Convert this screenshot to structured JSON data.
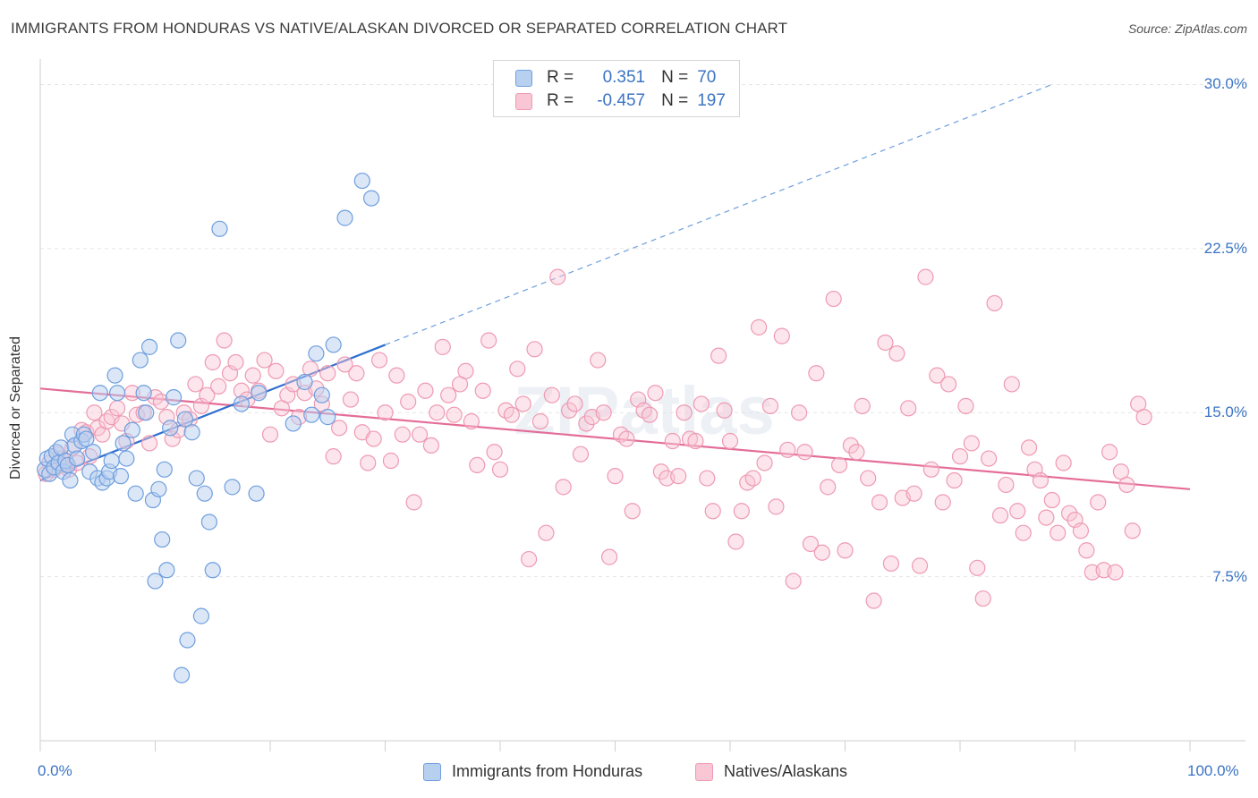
{
  "header": {
    "title": "IMMIGRANTS FROM HONDURAS VS NATIVE/ALASKAN DIVORCED OR SEPARATED CORRELATION CHART",
    "source": "Source: ZipAtlas.com"
  },
  "watermark": "ZIPatlas",
  "legend": {
    "rows": [
      {
        "r_label": "R =",
        "r_value": "0.351",
        "n_label": "N =",
        "n_value": "70"
      },
      {
        "r_label": "R =",
        "r_value": "-0.457",
        "n_label": "N =",
        "n_value": "197"
      }
    ]
  },
  "bottom_legend": [
    "Immigrants from Honduras",
    "Natives/Alaskans"
  ],
  "colors": {
    "blue_fill": "#b8d0f0",
    "blue_stroke": "#6f9fde",
    "blue_line": "#2f6fd0",
    "pink_fill": "#f8c6d4",
    "pink_stroke": "#ee9ab3",
    "pink_line": "#e46d98",
    "tick_text": "#3b74c4",
    "grid": "#e5e5e5"
  },
  "chart_data": {
    "type": "scatter",
    "title": "IMMIGRANTS FROM HONDURAS VS NATIVE/ALASKAN DIVORCED OR SEPARATED CORRELATION CHART",
    "xlabel": "",
    "ylabel": "Divorced or Separated",
    "x_tick_labels": [
      "0.0%",
      "100.0%"
    ],
    "y_tick_labels": [
      "7.5%",
      "15.0%",
      "22.5%",
      "30.0%"
    ],
    "y_ticks": [
      7.5,
      15.0,
      22.5,
      30.0
    ],
    "xlim": [
      0,
      100
    ],
    "ylim": [
      0,
      31
    ],
    "grid": true,
    "legend_position": "top-center",
    "series": [
      {
        "name": "Immigrants from Honduras",
        "color": "#6f9fde",
        "R": 0.351,
        "N": 70,
        "trend": {
          "x": [
            0,
            30
          ],
          "y": [
            11.9,
            18.1
          ],
          "dashed_extension_to": [
            88,
            30.0
          ]
        },
        "points": [
          [
            0.4,
            12.4
          ],
          [
            0.6,
            12.9
          ],
          [
            0.8,
            12.2
          ],
          [
            1.0,
            13.0
          ],
          [
            1.2,
            12.5
          ],
          [
            1.4,
            13.2
          ],
          [
            1.6,
            12.7
          ],
          [
            1.8,
            13.4
          ],
          [
            2.0,
            12.3
          ],
          [
            2.2,
            12.8
          ],
          [
            2.4,
            12.6
          ],
          [
            2.6,
            11.9
          ],
          [
            2.8,
            14.0
          ],
          [
            3.0,
            13.5
          ],
          [
            3.2,
            12.9
          ],
          [
            3.6,
            13.7
          ],
          [
            3.8,
            14.0
          ],
          [
            4.0,
            13.8
          ],
          [
            4.3,
            12.3
          ],
          [
            4.6,
            13.2
          ],
          [
            5.0,
            12.0
          ],
          [
            5.2,
            15.9
          ],
          [
            5.4,
            11.8
          ],
          [
            5.8,
            12.0
          ],
          [
            6.0,
            12.3
          ],
          [
            6.2,
            12.8
          ],
          [
            6.5,
            16.7
          ],
          [
            6.7,
            15.9
          ],
          [
            7.0,
            12.1
          ],
          [
            7.2,
            13.6
          ],
          [
            7.5,
            12.9
          ],
          [
            8.0,
            14.2
          ],
          [
            8.3,
            11.3
          ],
          [
            8.7,
            17.4
          ],
          [
            9.0,
            15.9
          ],
          [
            9.2,
            15.0
          ],
          [
            9.5,
            18.0
          ],
          [
            9.8,
            11.0
          ],
          [
            10.0,
            7.3
          ],
          [
            10.3,
            11.5
          ],
          [
            10.6,
            9.2
          ],
          [
            10.8,
            12.4
          ],
          [
            11.0,
            7.8
          ],
          [
            11.3,
            14.3
          ],
          [
            11.6,
            15.7
          ],
          [
            12.0,
            18.3
          ],
          [
            12.3,
            3.0
          ],
          [
            12.6,
            14.7
          ],
          [
            12.8,
            4.6
          ],
          [
            13.2,
            14.1
          ],
          [
            13.6,
            12.0
          ],
          [
            14.0,
            5.7
          ],
          [
            14.3,
            11.3
          ],
          [
            14.7,
            10.0
          ],
          [
            15.0,
            7.8
          ],
          [
            15.6,
            23.4
          ],
          [
            16.7,
            11.6
          ],
          [
            17.5,
            15.4
          ],
          [
            18.8,
            11.3
          ],
          [
            19.0,
            15.9
          ],
          [
            22.0,
            14.5
          ],
          [
            23.0,
            16.4
          ],
          [
            23.6,
            14.9
          ],
          [
            24.0,
            17.7
          ],
          [
            24.5,
            15.8
          ],
          [
            25.0,
            14.8
          ],
          [
            25.5,
            18.1
          ],
          [
            28.0,
            25.6
          ],
          [
            28.8,
            24.8
          ],
          [
            26.5,
            23.9
          ]
        ]
      },
      {
        "name": "Natives/Alaskans",
        "color": "#ee9ab3",
        "R": -0.457,
        "N": 197,
        "trend": {
          "x": [
            0,
            100
          ],
          "y": [
            16.1,
            11.5
          ]
        },
        "points": [
          [
            0.5,
            12.2
          ],
          [
            0.8,
            12.7
          ],
          [
            1.2,
            12.4
          ],
          [
            1.5,
            13.1
          ],
          [
            1.8,
            12.9
          ],
          [
            2.1,
            12.6
          ],
          [
            2.5,
            12.4
          ],
          [
            2.8,
            13.4
          ],
          [
            3.2,
            12.7
          ],
          [
            3.6,
            14.2
          ],
          [
            4.0,
            14.1
          ],
          [
            4.3,
            13.0
          ],
          [
            4.7,
            15.0
          ],
          [
            5.0,
            14.3
          ],
          [
            5.4,
            14.0
          ],
          [
            5.8,
            14.6
          ],
          [
            6.2,
            14.8
          ],
          [
            6.7,
            15.2
          ],
          [
            7.1,
            14.5
          ],
          [
            7.5,
            13.7
          ],
          [
            8.0,
            15.9
          ],
          [
            8.4,
            14.9
          ],
          [
            9.0,
            15.0
          ],
          [
            9.5,
            13.6
          ],
          [
            10.0,
            15.7
          ],
          [
            10.5,
            15.5
          ],
          [
            11.0,
            14.8
          ],
          [
            11.5,
            13.8
          ],
          [
            12.0,
            14.2
          ],
          [
            12.5,
            15.0
          ],
          [
            13.0,
            14.7
          ],
          [
            13.5,
            16.3
          ],
          [
            14.0,
            15.3
          ],
          [
            14.5,
            15.8
          ],
          [
            15.0,
            17.3
          ],
          [
            15.5,
            16.2
          ],
          [
            16.0,
            18.3
          ],
          [
            16.5,
            16.8
          ],
          [
            17.0,
            17.3
          ],
          [
            17.5,
            16.0
          ],
          [
            18.0,
            15.6
          ],
          [
            18.5,
            16.7
          ],
          [
            19.0,
            16.0
          ],
          [
            19.5,
            17.4
          ],
          [
            20.0,
            14.0
          ],
          [
            20.5,
            16.9
          ],
          [
            21.0,
            15.2
          ],
          [
            21.5,
            15.8
          ],
          [
            22.0,
            16.3
          ],
          [
            22.5,
            14.8
          ],
          [
            23.0,
            15.9
          ],
          [
            23.5,
            17.0
          ],
          [
            24.0,
            16.1
          ],
          [
            24.5,
            15.4
          ],
          [
            25.0,
            16.8
          ],
          [
            25.5,
            13.0
          ],
          [
            26.0,
            14.3
          ],
          [
            26.5,
            17.2
          ],
          [
            27.0,
            15.6
          ],
          [
            27.5,
            16.8
          ],
          [
            28.0,
            14.1
          ],
          [
            28.5,
            12.7
          ],
          [
            29.0,
            13.8
          ],
          [
            29.5,
            17.4
          ],
          [
            30.0,
            15.0
          ],
          [
            30.5,
            12.8
          ],
          [
            31.0,
            16.7
          ],
          [
            31.5,
            14.0
          ],
          [
            32.0,
            15.5
          ],
          [
            32.5,
            10.9
          ],
          [
            33.0,
            14.0
          ],
          [
            33.5,
            16.0
          ],
          [
            34.0,
            13.5
          ],
          [
            34.5,
            15.0
          ],
          [
            35.0,
            18.0
          ],
          [
            35.5,
            15.8
          ],
          [
            36.0,
            14.9
          ],
          [
            36.5,
            16.3
          ],
          [
            37.0,
            16.9
          ],
          [
            37.5,
            14.6
          ],
          [
            38.0,
            12.6
          ],
          [
            38.5,
            16.0
          ],
          [
            39.0,
            18.3
          ],
          [
            39.5,
            13.2
          ],
          [
            40.0,
            12.4
          ],
          [
            40.5,
            15.1
          ],
          [
            41.0,
            14.9
          ],
          [
            41.5,
            17.0
          ],
          [
            42.0,
            15.4
          ],
          [
            42.5,
            8.3
          ],
          [
            43.0,
            17.9
          ],
          [
            43.5,
            14.6
          ],
          [
            44.0,
            9.5
          ],
          [
            44.5,
            15.8
          ],
          [
            45.0,
            21.2
          ],
          [
            45.5,
            11.6
          ],
          [
            46.0,
            15.1
          ],
          [
            46.5,
            15.4
          ],
          [
            47.0,
            13.1
          ],
          [
            47.5,
            14.5
          ],
          [
            48.0,
            14.8
          ],
          [
            48.5,
            17.4
          ],
          [
            49.0,
            15.0
          ],
          [
            49.5,
            8.4
          ],
          [
            50.0,
            12.1
          ],
          [
            50.5,
            14.0
          ],
          [
            51.0,
            13.8
          ],
          [
            51.5,
            10.5
          ],
          [
            52.0,
            15.6
          ],
          [
            52.5,
            15.1
          ],
          [
            53.0,
            14.9
          ],
          [
            53.5,
            15.9
          ],
          [
            54.0,
            12.3
          ],
          [
            54.5,
            12.0
          ],
          [
            55.0,
            13.7
          ],
          [
            55.5,
            12.1
          ],
          [
            56.0,
            15.0
          ],
          [
            56.5,
            13.8
          ],
          [
            57.0,
            13.7
          ],
          [
            57.5,
            15.4
          ],
          [
            58.0,
            12.0
          ],
          [
            58.5,
            10.5
          ],
          [
            59.0,
            17.6
          ],
          [
            59.5,
            15.1
          ],
          [
            60.0,
            13.7
          ],
          [
            60.5,
            9.1
          ],
          [
            61.0,
            10.5
          ],
          [
            61.5,
            11.8
          ],
          [
            62.0,
            12.0
          ],
          [
            62.5,
            18.9
          ],
          [
            63.0,
            12.7
          ],
          [
            63.5,
            15.3
          ],
          [
            64.0,
            10.7
          ],
          [
            64.5,
            18.5
          ],
          [
            65.0,
            13.3
          ],
          [
            65.5,
            7.3
          ],
          [
            66.0,
            15.0
          ],
          [
            66.5,
            13.2
          ],
          [
            67.0,
            9.0
          ],
          [
            67.5,
            16.8
          ],
          [
            68.0,
            8.6
          ],
          [
            68.5,
            11.6
          ],
          [
            69.0,
            20.2
          ],
          [
            69.5,
            12.6
          ],
          [
            70.0,
            8.7
          ],
          [
            70.5,
            13.5
          ],
          [
            71.0,
            13.2
          ],
          [
            71.5,
            15.3
          ],
          [
            72.0,
            12.0
          ],
          [
            72.5,
            6.4
          ],
          [
            73.0,
            10.9
          ],
          [
            73.5,
            18.2
          ],
          [
            74.0,
            8.1
          ],
          [
            74.5,
            17.7
          ],
          [
            75.0,
            11.1
          ],
          [
            75.5,
            15.2
          ],
          [
            76.0,
            11.3
          ],
          [
            76.5,
            8.0
          ],
          [
            77.0,
            21.2
          ],
          [
            77.5,
            12.4
          ],
          [
            78.0,
            16.7
          ],
          [
            78.5,
            10.9
          ],
          [
            79.0,
            16.3
          ],
          [
            79.5,
            11.9
          ],
          [
            80.0,
            13.0
          ],
          [
            80.5,
            15.3
          ],
          [
            81.0,
            13.6
          ],
          [
            81.5,
            7.9
          ],
          [
            82.0,
            6.5
          ],
          [
            82.5,
            12.9
          ],
          [
            83.0,
            20.0
          ],
          [
            83.5,
            10.3
          ],
          [
            84.0,
            11.7
          ],
          [
            84.5,
            16.3
          ],
          [
            85.0,
            10.5
          ],
          [
            85.5,
            9.5
          ],
          [
            86.0,
            13.4
          ],
          [
            86.5,
            12.4
          ],
          [
            87.0,
            11.9
          ],
          [
            87.5,
            10.2
          ],
          [
            88.0,
            11.0
          ],
          [
            88.5,
            9.5
          ],
          [
            89.0,
            12.7
          ],
          [
            89.5,
            10.4
          ],
          [
            90.0,
            10.1
          ],
          [
            90.5,
            9.6
          ],
          [
            91.0,
            8.7
          ],
          [
            91.5,
            7.7
          ],
          [
            92.0,
            10.9
          ],
          [
            92.5,
            7.8
          ],
          [
            93.0,
            13.2
          ],
          [
            93.5,
            7.7
          ],
          [
            94.0,
            12.3
          ],
          [
            94.5,
            11.7
          ],
          [
            95.0,
            9.6
          ],
          [
            95.5,
            15.4
          ],
          [
            96.0,
            14.8
          ]
        ]
      }
    ]
  }
}
